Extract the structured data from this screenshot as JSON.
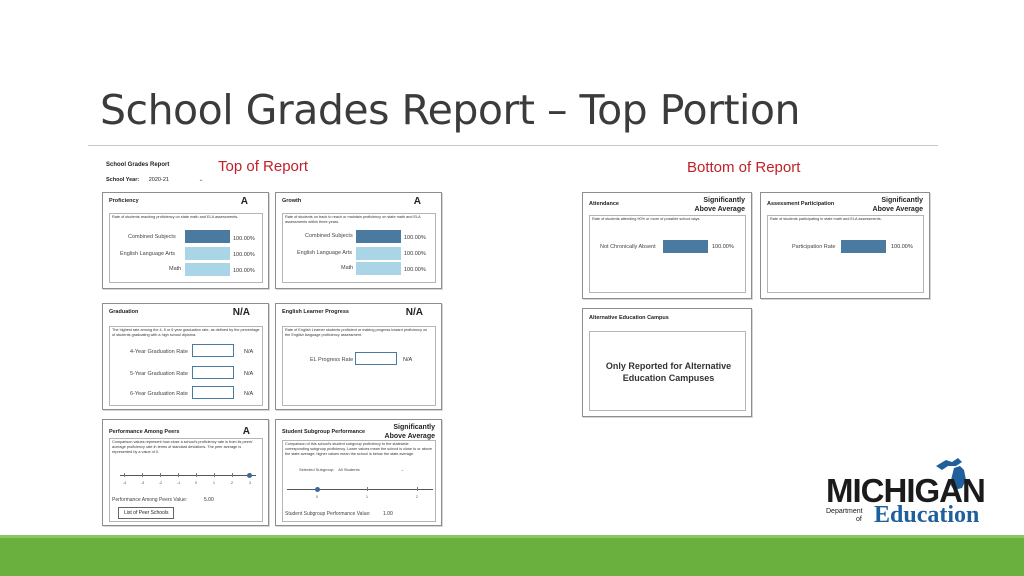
{
  "slide": {
    "title": "School Grades Report – Top Portion",
    "caption_top": "Top of Report",
    "caption_bottom": "Bottom of Report"
  },
  "report_header": {
    "title": "School Grades Report",
    "year_label": "School Year:",
    "year_value": "2020-21"
  },
  "cards": {
    "proficiency": {
      "name": "Proficiency",
      "grade": "A",
      "desc": "Rate of students reaching proficiency on state math and ELA assessments.",
      "rows": [
        {
          "label": "Combined Subjects",
          "value": "100.00%"
        },
        {
          "label": "English Language Arts",
          "value": "100.00%"
        },
        {
          "label": "Math",
          "value": "100.00%"
        }
      ]
    },
    "growth": {
      "name": "Growth",
      "grade": "A",
      "desc": "Rate of students on track to reach or maintain proficiency on state math and ELA assessments within three years.",
      "rows": [
        {
          "label": "Combined Subjects",
          "value": "100.00%"
        },
        {
          "label": "English Language Arts",
          "value": "100.00%"
        },
        {
          "label": "Math",
          "value": "100.00%"
        }
      ]
    },
    "graduation": {
      "name": "Graduation",
      "grade": "N/A",
      "desc": "The highest rate among the 4, 5 or 6 year graduation rate, as defined by the percentage of students graduating with a high school diploma.",
      "rows": [
        {
          "label": "4-Year Graduation Rate",
          "value": "N/A"
        },
        {
          "label": "5-Year Graduation Rate",
          "value": "N/A"
        },
        {
          "label": "6-Year Graduation Rate",
          "value": "N/A"
        }
      ]
    },
    "elp": {
      "name": "English Learner Progress",
      "grade": "N/A",
      "desc": "Rate of English Learner students proficient or making progress toward proficiency on the English language proficiency assessment.",
      "rows": [
        {
          "label": "EL Progress Rate",
          "value": "N/A"
        }
      ]
    },
    "peers": {
      "name": "Performance Among Peers",
      "grade": "A",
      "desc": "Comparison values represent how close a school's proficiency rate is from its peers' average proficiency rate in terms of standard deviations. The peer average is represented by a value of 0.",
      "ticks": [
        "-4",
        "-3",
        "-2",
        "-1",
        "0",
        "1",
        "2",
        "3"
      ],
      "value_label": "Performance Among Peers Value:",
      "value": "5.00",
      "button": "List of Peer Schools"
    },
    "subgroup": {
      "name": "Student Subgroup Performance",
      "grade_line1": "Significantly",
      "grade_line2": "Above Average",
      "desc": "Comparison of this school's student subgroup proficiency to the statewide corresponding subgroup proficiency. Lower values mean the school is close to or above the state average; higher values mean the school is below the state average.",
      "selected_label": "Selected Subgroup:",
      "selected_value": "All Students",
      "ticks": [
        "0",
        "1",
        "2"
      ],
      "value_label": "Student Subgroup Performance Value:",
      "value": "1.00"
    },
    "attendance": {
      "name": "Attendance",
      "grade_line1": "Significantly",
      "grade_line2": "Above Average",
      "desc": "Rate of students attending 90% or more of possible school days.",
      "row_label": "Not Chronically Absent",
      "row_value": "100.00%"
    },
    "participation": {
      "name": "Assessment Participation",
      "grade_line1": "Significantly",
      "grade_line2": "Above Average",
      "desc": "Rate of students participating in state math and ELA assessments.",
      "row_label": "Participation Rate",
      "row_value": "100.00%"
    },
    "altEd": {
      "name": "Alternative Education Campus",
      "note_line1": "Only Reported for Alternative",
      "note_line2": "Education Campuses"
    }
  },
  "logo": {
    "wordmark": "MICHIGAN",
    "dept_line1": "Department",
    "dept_line2": "of",
    "edu": "Education",
    "colors": {
      "blue": "#1f5f9c",
      "black": "#1b1b1b"
    }
  },
  "theme": {
    "accent_red": "#c0212a",
    "bar_dark": "#4a7aa0",
    "bar_light": "#a9d5e6",
    "band_green": "#6ab03e"
  }
}
